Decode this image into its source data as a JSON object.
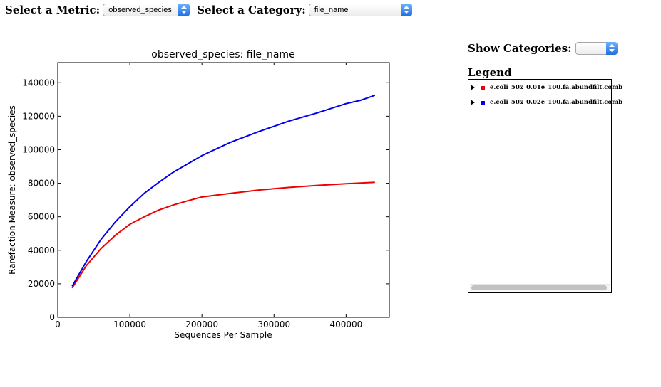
{
  "controls": {
    "metric_label": "Select a Metric:",
    "metric_value": "observed_species",
    "category_label": "Select a Category:",
    "category_value": "file_name",
    "show_categories_label": "Show Categories:",
    "show_categories_value": ""
  },
  "legend": {
    "title": "Legend",
    "items": [
      {
        "label": "e.coli_50x_0.01e_100.fa.abundfilt.comb",
        "color": "#ee0000"
      },
      {
        "label": "e.coli_50x_0.02e_100.fa.abundfilt.comb",
        "color": "#0000ee"
      }
    ]
  },
  "chart_data": {
    "type": "line",
    "title": "observed_species: file_name",
    "xlabel": "Sequences Per Sample",
    "ylabel": "Rarefaction Measure: observed_species",
    "xlim": [
      0,
      460000
    ],
    "ylim": [
      0,
      152000
    ],
    "xticks": [
      0,
      100000,
      200000,
      300000,
      400000
    ],
    "yticks": [
      0,
      20000,
      40000,
      60000,
      80000,
      100000,
      120000,
      140000
    ],
    "grid": false,
    "series": [
      {
        "name": "e.coli_50x_0.01e_100.fa.abundfilt.comb",
        "color": "#ee0000",
        "x": [
          20000,
          40000,
          60000,
          80000,
          100000,
          120000,
          140000,
          160000,
          180000,
          200000,
          240000,
          280000,
          320000,
          360000,
          400000,
          440000
        ],
        "y": [
          17500,
          31000,
          41000,
          49000,
          55500,
          60000,
          64000,
          67000,
          69500,
          71800,
          74000,
          76000,
          77500,
          78700,
          79700,
          80600
        ]
      },
      {
        "name": "e.coli_50x_0.02e_100.fa.abundfilt.comb",
        "color": "#0000ee",
        "x": [
          20000,
          40000,
          60000,
          80000,
          100000,
          120000,
          140000,
          160000,
          180000,
          200000,
          240000,
          280000,
          320000,
          360000,
          400000,
          420000,
          440000
        ],
        "y": [
          18500,
          33500,
          46500,
          57000,
          66000,
          74000,
          80500,
          86500,
          91500,
          96500,
          104500,
          111000,
          117000,
          122000,
          127500,
          129500,
          132500
        ]
      }
    ]
  }
}
